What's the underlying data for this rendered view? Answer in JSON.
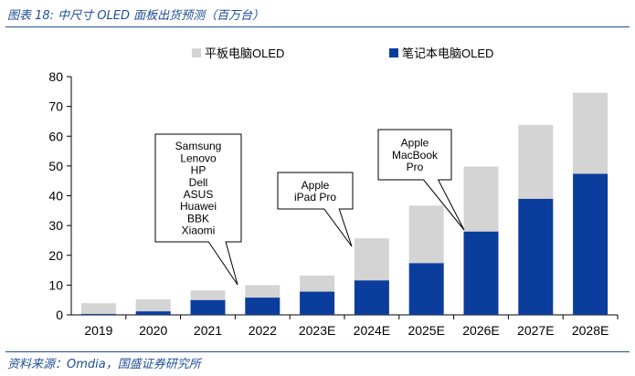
{
  "header": {
    "title": "图表 18:  中尺寸 OLED 面板出货预测（百万台）"
  },
  "footer": {
    "source": "资料来源：Omdia，国盛证券研究所"
  },
  "chart_data": {
    "type": "bar",
    "stacked": true,
    "categories": [
      "2019",
      "2020",
      "2021",
      "2022",
      "2023E",
      "2024E",
      "2025E",
      "2026E",
      "2027E",
      "2028E"
    ],
    "series": [
      {
        "name": "笔记本电脑OLED",
        "color": "#0a3d9c",
        "values": [
          0.3,
          1.2,
          5.0,
          5.8,
          7.8,
          11.6,
          17.4,
          28.0,
          39.0,
          47.4
        ]
      },
      {
        "name": "平板电脑OLED",
        "color": "#d4d4d4",
        "values": [
          3.6,
          4.0,
          3.2,
          4.2,
          5.4,
          14.1,
          19.3,
          21.8,
          24.8,
          27.2
        ]
      }
    ],
    "ylim": [
      0,
      80
    ],
    "yticks": [
      0,
      10,
      20,
      30,
      40,
      50,
      60,
      70,
      80
    ],
    "legend_order": [
      "平板电脑OLED",
      "笔记本电脑OLED"
    ],
    "legend_position": "top",
    "annotations": [
      {
        "category": "2022",
        "lines": [
          "Samsung",
          "Lenovo",
          "HP",
          "Dell",
          "ASUS",
          "Huawei",
          "BBK",
          "Xiaomi"
        ]
      },
      {
        "category": "2024E",
        "lines": [
          "Apple",
          "iPad Pro"
        ]
      },
      {
        "category": "2026E",
        "lines": [
          "Apple",
          "MacBook",
          "Pro"
        ]
      }
    ]
  }
}
